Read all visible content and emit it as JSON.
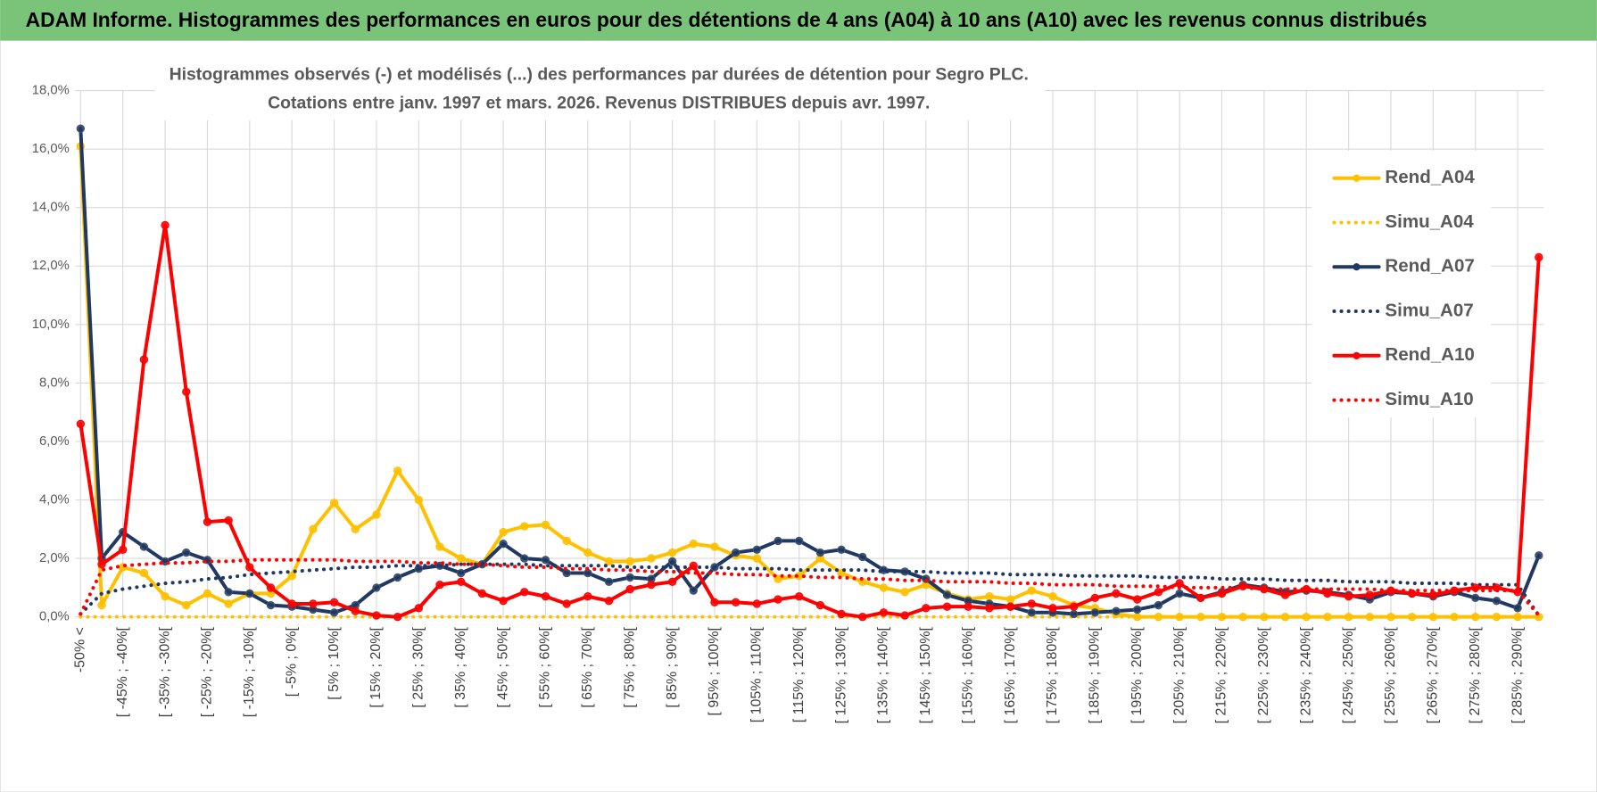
{
  "header": {
    "title": "ADAM Informe. Histogrammes des performances en euros pour des détentions de 4 ans (A04) à 10 ans (A10) avec les revenus connus distribués"
  },
  "chart_data": {
    "type": "line",
    "title": "Histogrammes observés (-) et modélisés (...) des performances par durées de détention pour Segro PLC.",
    "subtitle": "Cotations entre janv. 1997 et mars. 2026. Revenus DISTRIBUES depuis avr. 1997.",
    "categories": [
      "-50% <",
      null,
      "[ -45% ; -40%[",
      null,
      "[ -35% ; -30%[",
      null,
      "[ -25% ; -20%[",
      null,
      "[ -15% ; -10%[",
      null,
      "[ -5% ; 0%[",
      null,
      "[ 5% ; 10%[",
      null,
      "[ 15% ; 20%[",
      null,
      "[ 25% ; 30%[",
      null,
      "[ 35% ; 40%[",
      null,
      "[ 45% ; 50%[",
      null,
      "[ 55% ; 60%[",
      null,
      "[ 65% ; 70%[",
      null,
      "[ 75% ; 80%[",
      null,
      "[ 85% ; 90%[",
      null,
      "[ 95% ; 100%[",
      null,
      "[ 105% ; 110%[",
      null,
      "[ 115% ; 120%[",
      null,
      "[ 125% ; 130%[",
      null,
      "[ 135% ; 140%[",
      null,
      "[ 145% ; 150%[",
      null,
      "[ 155% ; 160%[",
      null,
      "[ 165% ; 170%[",
      null,
      "[ 175% ; 180%[",
      null,
      "[ 185% ; 190%[",
      null,
      "[ 195% ; 200%[",
      null,
      "[ 205% ; 210%[",
      null,
      "[ 215% ; 220%[",
      null,
      "[ 225% ; 230%[",
      null,
      "[ 235% ; 240%[",
      null,
      "[ 245% ; 250%[",
      null,
      "[ 255% ; 260%[",
      null,
      "[ 265% ; 270%[",
      null,
      "[ 275% ; 280%[",
      null,
      "[ 285% ; 290%[",
      null
    ],
    "ylim": [
      0,
      18
    ],
    "yticks": [
      {
        "value": 0,
        "label": "0,0%"
      },
      {
        "value": 2,
        "label": "2,0%"
      },
      {
        "value": 4,
        "label": "4,0%"
      },
      {
        "value": 6,
        "label": "6,0%"
      },
      {
        "value": 8,
        "label": "8,0%"
      },
      {
        "value": 10,
        "label": "10,0%"
      },
      {
        "value": 12,
        "label": "12,0%"
      },
      {
        "value": 14,
        "label": "14,0%"
      },
      {
        "value": 16,
        "label": "16,0%"
      },
      {
        "value": 18,
        "label": "18,0%"
      }
    ],
    "grid": true,
    "legend": "right",
    "series": [
      {
        "name": "Rend_A04",
        "color": "#ffc000",
        "line_style": "solid",
        "markers": true,
        "values": [
          16.1,
          0.4,
          1.7,
          1.5,
          0.7,
          0.4,
          0.8,
          0.45,
          0.8,
          0.8,
          1.4,
          3.0,
          3.9,
          3.0,
          3.5,
          5.0,
          4.0,
          2.4,
          2.0,
          1.8,
          2.9,
          3.1,
          3.15,
          2.6,
          2.2,
          1.9,
          1.9,
          2.0,
          2.2,
          2.5,
          2.4,
          2.1,
          2.0,
          1.3,
          1.4,
          2.0,
          1.5,
          1.2,
          1.0,
          0.85,
          1.1,
          0.8,
          0.6,
          0.7,
          0.6,
          0.9,
          0.7,
          0.4,
          0.3,
          0.1,
          0,
          0,
          0,
          0,
          0,
          0,
          0,
          0,
          0,
          0,
          0,
          0,
          0,
          0,
          0,
          0,
          0,
          0,
          0,
          0
        ]
      },
      {
        "name": "Simu_A04",
        "color": "#ffc000",
        "line_style": "dotted",
        "markers": false,
        "values": [
          0,
          0,
          0,
          0,
          0,
          0,
          0,
          0,
          0,
          0,
          0,
          0,
          0,
          0,
          0,
          0,
          0,
          0,
          0,
          0,
          0,
          0,
          0,
          0,
          0,
          0,
          0,
          0,
          0,
          0,
          0,
          0,
          0,
          0,
          0,
          0,
          0,
          0,
          0,
          0,
          0,
          0,
          0,
          0,
          0,
          0,
          0,
          0,
          0,
          0,
          0,
          0,
          0,
          0,
          0,
          0,
          0,
          0,
          0,
          0,
          0,
          0,
          0,
          0,
          0,
          0,
          0,
          0,
          0,
          0
        ]
      },
      {
        "name": "Rend_A07",
        "color": "#1f3864",
        "line_style": "solid",
        "markers": true,
        "values": [
          16.7,
          2.0,
          2.9,
          2.4,
          1.9,
          2.2,
          1.95,
          0.85,
          0.8,
          0.4,
          0.35,
          0.25,
          0.15,
          0.4,
          1.0,
          1.35,
          1.65,
          1.75,
          1.5,
          1.8,
          2.5,
          2.0,
          1.95,
          1.5,
          1.5,
          1.2,
          1.35,
          1.3,
          1.9,
          0.9,
          1.7,
          2.2,
          2.3,
          2.6,
          2.6,
          2.2,
          2.3,
          2.05,
          1.6,
          1.55,
          1.3,
          0.75,
          0.55,
          0.45,
          0.35,
          0.15,
          0.15,
          0.1,
          0.15,
          0.2,
          0.25,
          0.4,
          0.8,
          0.65,
          0.85,
          1.1,
          1.0,
          0.85,
          0.9,
          0.85,
          0.75,
          0.6,
          0.85,
          0.8,
          0.7,
          0.85,
          0.65,
          0.55,
          0.3,
          2.1
        ]
      },
      {
        "name": "Simu_A07",
        "color": "#1f3864",
        "line_style": "dotted",
        "markers": false,
        "values": [
          0.1,
          0.8,
          0.95,
          1.05,
          1.15,
          1.2,
          1.3,
          1.35,
          1.45,
          1.5,
          1.55,
          1.6,
          1.65,
          1.7,
          1.7,
          1.75,
          1.75,
          1.75,
          1.8,
          1.8,
          1.8,
          1.8,
          1.75,
          1.75,
          1.75,
          1.75,
          1.7,
          1.7,
          1.7,
          1.7,
          1.7,
          1.65,
          1.65,
          1.65,
          1.6,
          1.6,
          1.6,
          1.6,
          1.55,
          1.55,
          1.55,
          1.5,
          1.5,
          1.5,
          1.45,
          1.45,
          1.45,
          1.4,
          1.4,
          1.4,
          1.4,
          1.35,
          1.35,
          1.35,
          1.3,
          1.3,
          1.3,
          1.25,
          1.25,
          1.25,
          1.2,
          1.2,
          1.2,
          1.15,
          1.15,
          1.15,
          1.1,
          1.1,
          1.1,
          0.05
        ]
      },
      {
        "name": "Rend_A10",
        "color": "#ff0000",
        "line_style": "solid",
        "markers": true,
        "values": [
          6.6,
          1.8,
          2.3,
          8.8,
          13.4,
          7.7,
          3.25,
          3.3,
          1.7,
          1.0,
          0.45,
          0.45,
          0.5,
          0.2,
          0.05,
          0,
          0.3,
          1.1,
          1.2,
          0.8,
          0.55,
          0.85,
          0.7,
          0.45,
          0.7,
          0.55,
          0.95,
          1.1,
          1.2,
          1.75,
          0.5,
          0.5,
          0.45,
          0.6,
          0.7,
          0.4,
          0.1,
          0,
          0.15,
          0.05,
          0.3,
          0.35,
          0.35,
          0.3,
          0.35,
          0.45,
          0.3,
          0.35,
          0.65,
          0.8,
          0.6,
          0.85,
          1.15,
          0.65,
          0.8,
          1.05,
          0.95,
          0.75,
          0.95,
          0.8,
          0.7,
          0.75,
          0.9,
          0.8,
          0.75,
          0.9,
          1.0,
          1.0,
          0.85,
          12.3
        ]
      },
      {
        "name": "Simu_A10",
        "color": "#ff0000",
        "line_style": "dotted",
        "markers": false,
        "values": [
          0.1,
          1.6,
          1.75,
          1.8,
          1.85,
          1.85,
          1.9,
          1.9,
          1.95,
          1.95,
          1.95,
          1.95,
          1.95,
          1.9,
          1.9,
          1.9,
          1.85,
          1.85,
          1.8,
          1.8,
          1.75,
          1.7,
          1.7,
          1.65,
          1.65,
          1.6,
          1.6,
          1.55,
          1.55,
          1.5,
          1.5,
          1.45,
          1.45,
          1.4,
          1.4,
          1.35,
          1.35,
          1.3,
          1.3,
          1.25,
          1.25,
          1.2,
          1.2,
          1.2,
          1.15,
          1.15,
          1.1,
          1.1,
          1.1,
          1.05,
          1.05,
          1.05,
          1.0,
          1.0,
          1.0,
          1.0,
          0.95,
          0.95,
          0.95,
          0.95,
          0.95,
          0.95,
          0.9,
          0.9,
          0.9,
          0.9,
          0.9,
          0.9,
          0.9,
          0.05
        ]
      }
    ]
  }
}
